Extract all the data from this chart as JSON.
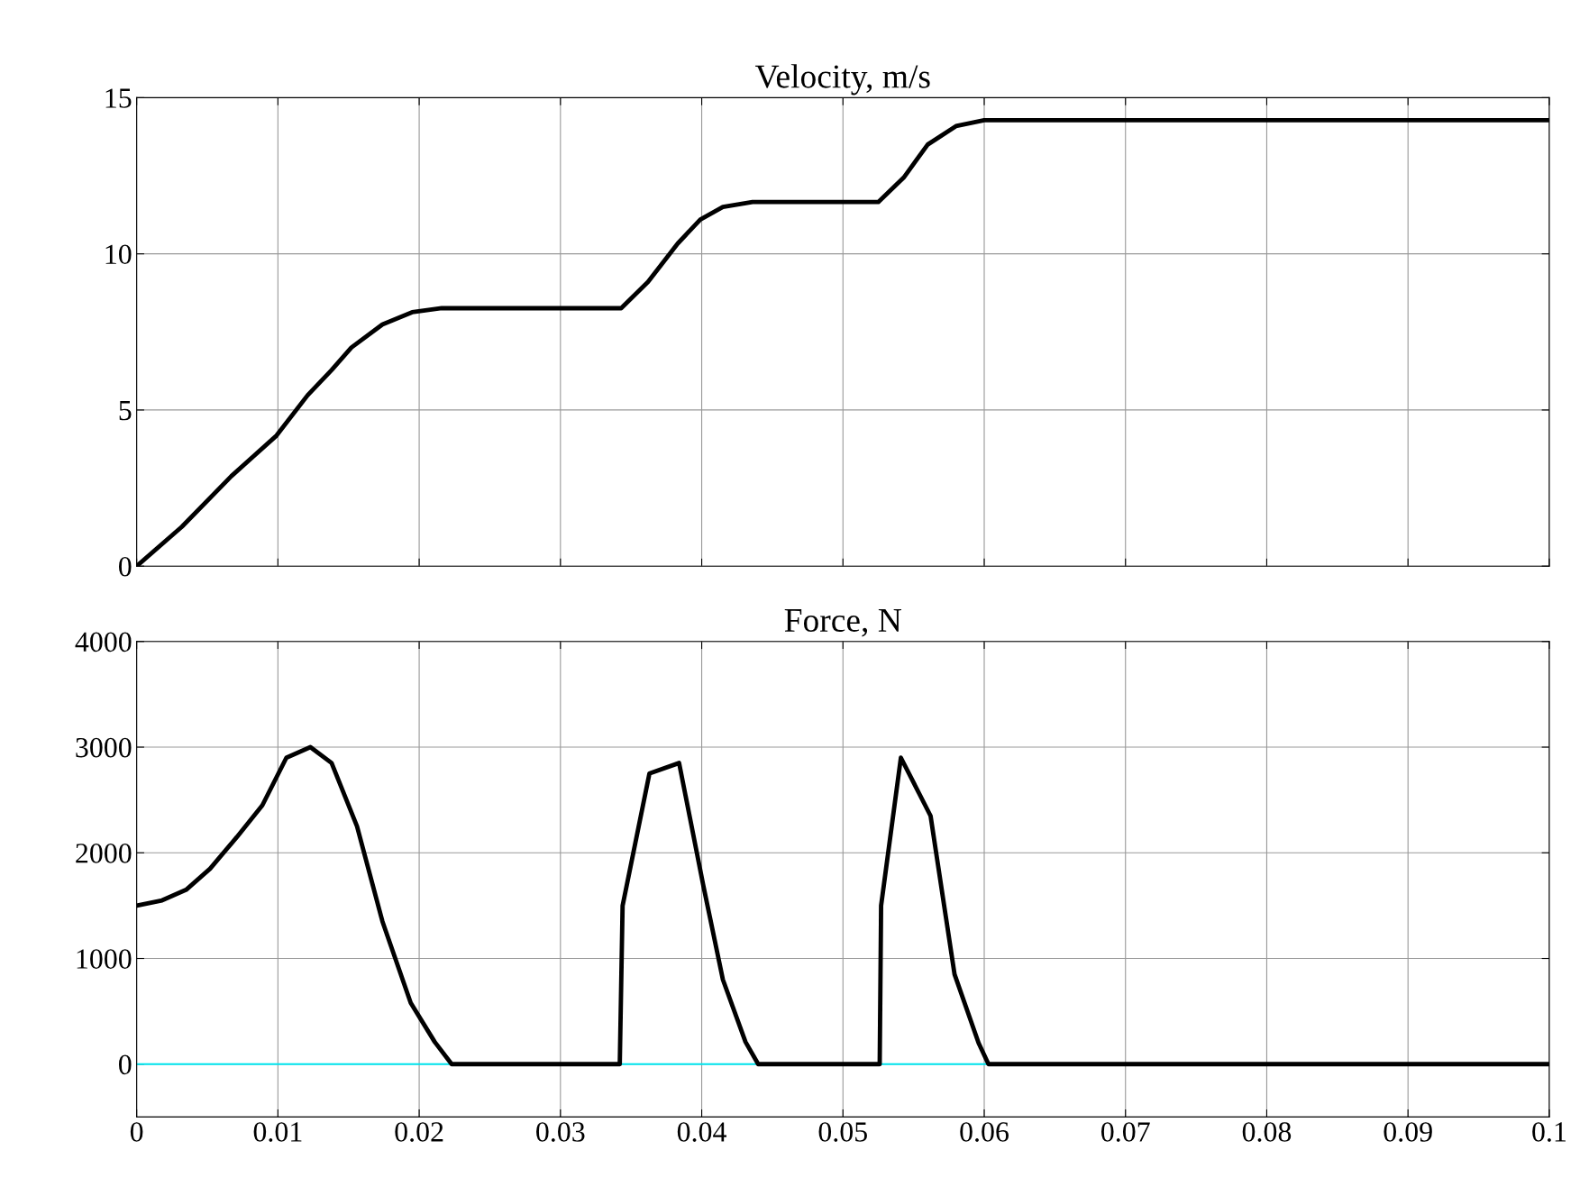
{
  "chart_data": [
    {
      "type": "line",
      "title": "Velocity, m/s",
      "x": [
        0,
        0.0032,
        0.0067,
        0.0099,
        0.0121,
        0.0138,
        0.0152,
        0.0174,
        0.0195,
        0.0216,
        0.0343,
        0.0362,
        0.0383,
        0.0399,
        0.0415,
        0.0436,
        0.0525,
        0.0543,
        0.056,
        0.058,
        0.06,
        0.1
      ],
      "series": [
        {
          "color": "#000000",
          "values": [
            0,
            1.26,
            2.88,
            4.18,
            5.47,
            6.28,
            7.0,
            7.74,
            8.13,
            8.26,
            8.26,
            9.1,
            10.33,
            11.1,
            11.5,
            11.66,
            11.66,
            12.44,
            13.5,
            14.09,
            14.28,
            14.28
          ]
        }
      ],
      "xlim": [
        0,
        0.1
      ],
      "xticks": [
        0,
        0.01,
        0.02,
        0.03,
        0.04,
        0.05,
        0.06,
        0.07,
        0.08,
        0.09,
        0.1
      ],
      "ylim": [
        0,
        15
      ],
      "yticks": [
        0,
        5,
        10,
        15
      ],
      "grid": true,
      "tick_labels": "y",
      "marker": "none",
      "line_style": "solid"
    },
    {
      "type": "line",
      "title": "Force, N",
      "x": [
        0,
        0.0018,
        0.0035,
        0.0052,
        0.0071,
        0.0089,
        0.0106,
        0.0123,
        0.0138,
        0.0156,
        0.0174,
        0.0194,
        0.0211,
        0.0223,
        0.0342,
        0.0344,
        0.0363,
        0.0384,
        0.0401,
        0.0415,
        0.0431,
        0.044,
        0.0526,
        0.0527,
        0.0541,
        0.0562,
        0.0579,
        0.0596,
        0.0603,
        0.1
      ],
      "series": [
        {
          "color": "#000000",
          "values": [
            1500,
            1550,
            1650,
            1850,
            2150,
            2450,
            2900,
            3000,
            2850,
            2250,
            1350,
            580,
            210,
            0,
            0,
            1500,
            2750,
            2850,
            1700,
            800,
            210,
            0,
            0,
            1500,
            2900,
            2350,
            850,
            200,
            0,
            0
          ]
        }
      ],
      "ref_lines": [
        {
          "axis": "y",
          "value": 0,
          "color": "#00e5ee"
        }
      ],
      "xlim": [
        0,
        0.1
      ],
      "xticks": [
        0,
        0.01,
        0.02,
        0.03,
        0.04,
        0.05,
        0.06,
        0.07,
        0.08,
        0.09,
        0.1
      ],
      "ylim": [
        -500,
        4000
      ],
      "yticks": [
        0,
        1000,
        2000,
        3000,
        4000
      ],
      "grid": true,
      "marker": "none",
      "line_style": "solid"
    }
  ]
}
